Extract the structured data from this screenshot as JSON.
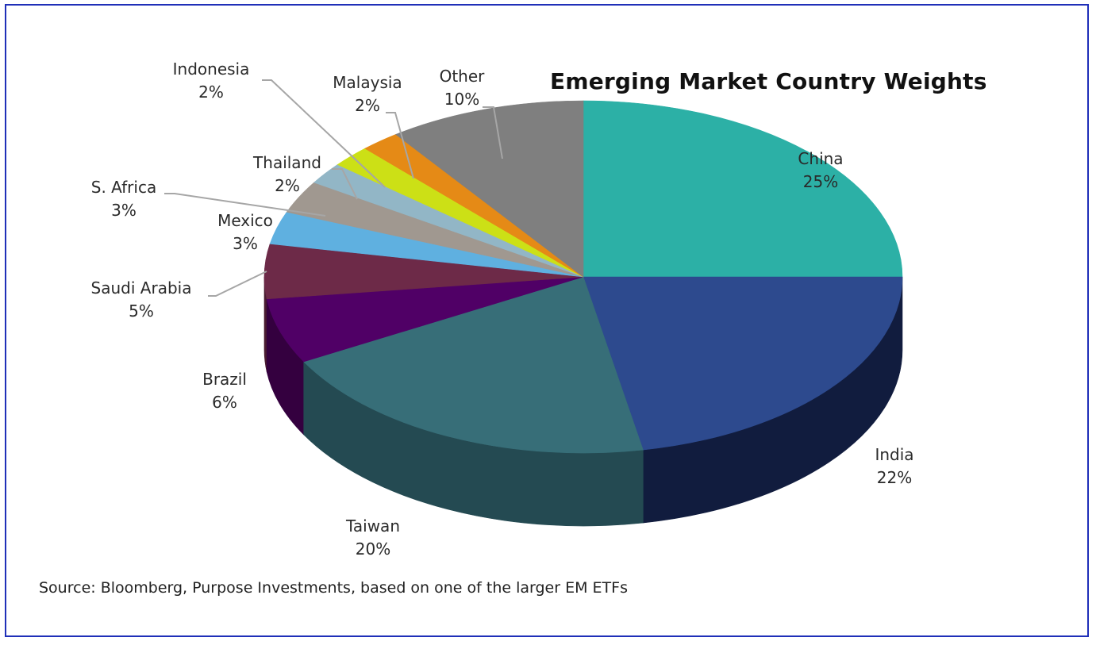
{
  "chart_data": {
    "type": "pie",
    "title": "Emerging Market Country Weights",
    "style": "3d",
    "slices": [
      {
        "label": "China",
        "value": 25,
        "value_label": "25%",
        "color": "#2cb0a6",
        "side": "#1d7d76"
      },
      {
        "label": "India",
        "value": 22,
        "value_label": "22%",
        "color": "#2d4a8e",
        "side": "#111c3e"
      },
      {
        "label": "Taiwan",
        "value": 20,
        "value_label": "20%",
        "color": "#376e78",
        "side": "#244a52"
      },
      {
        "label": "Brazil",
        "value": 6,
        "value_label": "6%",
        "color": "#500066",
        "side": "#34003f"
      },
      {
        "label": "Saudi Arabia",
        "value": 5,
        "value_label": "5%",
        "color": "#6d2a48",
        "side": "#4a1c31"
      },
      {
        "label": "Mexico",
        "value": 3,
        "value_label": "3%",
        "color": "#5fb0e0",
        "side": "#3d7fa6"
      },
      {
        "label": "S. Africa",
        "value": 3,
        "value_label": "3%",
        "color": "#a09890",
        "side": "#6e6760"
      },
      {
        "label": "Thailand",
        "value": 2,
        "value_label": "2%",
        "color": "#92b6c6",
        "side": "#62808e"
      },
      {
        "label": "Indonesia",
        "value": 2,
        "value_label": "2%",
        "color": "#cce016",
        "side": "#8fa00e"
      },
      {
        "label": "Malaysia",
        "value": 2,
        "value_label": "2%",
        "color": "#e58a16",
        "side": "#a2600e"
      },
      {
        "label": "Other",
        "value": 10,
        "value_label": "10%",
        "color": "#7f7f7f",
        "side": "#555555"
      }
    ],
    "source": "Source: Bloomberg, Purpose Investments, based on one of the larger EM ETFs"
  }
}
